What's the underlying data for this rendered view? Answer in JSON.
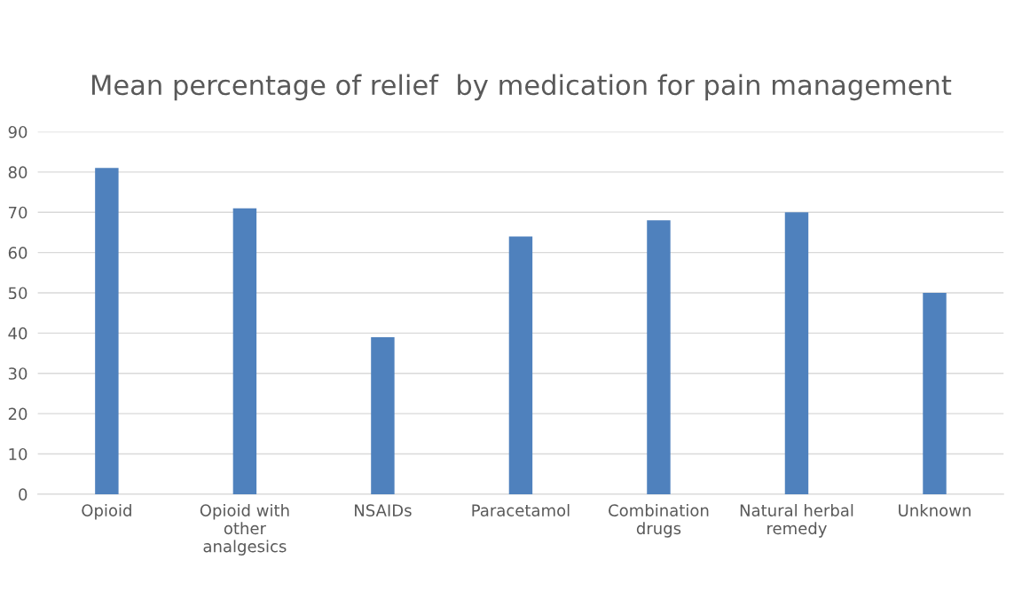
{
  "chart_data": {
    "type": "bar",
    "title": "Mean percentage of relief  by medication for pain management",
    "categories": [
      "Opioid",
      "Opioid with\nother\nanalgesics",
      "NSAIDs",
      "Paracetamol",
      "Combination\ndrugs",
      "Natural herbal\nremedy",
      "Unknown"
    ],
    "values": [
      81,
      71,
      39,
      64,
      68,
      70,
      50
    ],
    "color": "#4f81bd",
    "ylim": [
      0,
      90
    ],
    "yticks": [
      0,
      10,
      20,
      30,
      40,
      50,
      60,
      70,
      80,
      90
    ],
    "grid": "y",
    "legend": false
  }
}
